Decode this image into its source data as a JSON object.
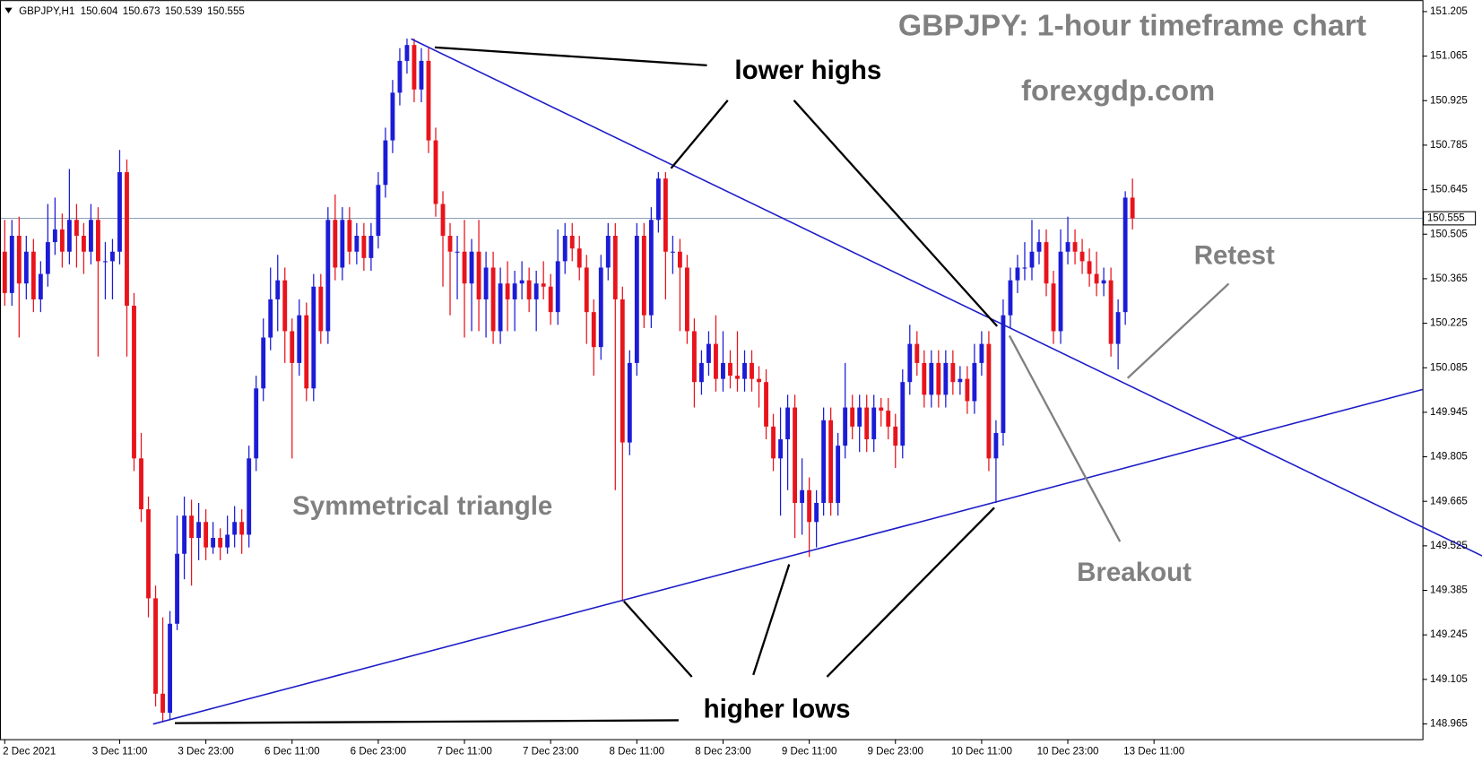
{
  "chart_data": {
    "type": "candlestick",
    "title": "GBPJPY: 1-hour timeframe chart",
    "subtitle": "forexgdp.com",
    "header": {
      "symbol": "GBPJPY,H1",
      "ohlc": [
        150.604,
        150.673,
        150.539,
        150.555
      ]
    },
    "annotations": [
      "lower highs",
      "higher lows",
      "Symmetrical triangle",
      "Breakout",
      "Retest"
    ],
    "up_color": "#1c1cd6",
    "down_color": "#e8141c",
    "bid_line": 150.555,
    "ylim": [
      148.917,
      151.241
    ],
    "yticks": [
      151.205,
      151.065,
      150.925,
      150.785,
      150.645,
      150.505,
      150.365,
      150.225,
      150.085,
      149.945,
      149.805,
      149.665,
      149.525,
      149.385,
      149.245,
      149.105,
      148.965
    ],
    "xlim": [
      -0.66,
      197.37
    ],
    "xticks": [
      {
        "value": 0,
        "label": "2 Dec 2021"
      },
      {
        "value": 16,
        "label": "3 Dec 11:00"
      },
      {
        "value": 28,
        "label": "3 Dec 23:00"
      },
      {
        "value": 40,
        "label": "6 Dec 11:00"
      },
      {
        "value": 52,
        "label": "6 Dec 23:00"
      },
      {
        "value": 64,
        "label": "7 Dec 11:00"
      },
      {
        "value": 76,
        "label": "7 Dec 23:00"
      },
      {
        "value": 88,
        "label": "8 Dec 11:00"
      },
      {
        "value": 100,
        "label": "8 Dec 23:00"
      },
      {
        "value": 112,
        "label": "9 Dec 11:00"
      },
      {
        "value": 124,
        "label": "9 Dec 23:00"
      },
      {
        "value": 136,
        "label": "10 Dec 11:00"
      },
      {
        "value": 148,
        "label": "10 Dec 23:00"
      },
      {
        "value": 160,
        "label": "13 Dec 11:00"
      }
    ],
    "open": [
      150.45,
      150.32,
      150.5,
      150.35,
      150.45,
      150.3,
      150.38,
      150.48,
      150.52,
      150.45,
      150.55,
      150.5,
      150.45,
      150.55,
      150.42,
      150.42,
      150.45,
      150.7,
      150.28,
      149.8,
      149.64,
      149.36,
      149.06,
      149.0,
      149.28,
      149.5,
      149.62,
      149.55,
      149.6,
      149.52,
      149.55,
      149.52,
      149.56,
      149.6,
      149.56,
      149.8,
      150.02,
      150.18,
      150.3,
      150.36,
      150.2,
      150.1,
      150.25,
      150.02,
      150.34,
      150.2,
      150.55,
      150.4,
      150.55,
      150.45,
      150.5,
      150.43,
      150.5,
      150.66,
      150.8,
      150.95,
      151.05,
      151.1,
      150.96,
      151.05,
      150.8,
      150.6,
      150.5,
      150.45,
      150.45,
      150.35,
      150.45,
      150.3,
      150.4,
      150.2,
      150.35,
      150.3,
      150.35,
      150.36,
      150.3,
      150.35,
      150.34,
      150.26,
      150.42,
      150.5,
      150.46,
      150.4,
      150.26,
      150.15,
      150.4,
      150.5,
      150.3,
      149.85,
      150.1,
      150.5,
      150.25,
      150.55,
      150.68,
      150.45,
      150.45,
      150.4,
      150.2,
      150.04,
      150.1,
      150.16,
      150.05,
      150.1,
      150.06,
      150.05,
      150.1,
      150.05,
      150.04,
      149.9,
      149.8,
      149.86,
      149.96,
      149.66,
      149.7,
      149.6,
      149.66,
      149.92,
      149.66,
      149.84,
      149.96,
      149.9,
      149.96,
      149.86,
      149.96,
      149.95,
      149.9,
      149.84,
      150.04,
      150.16,
      150.1,
      150.0,
      150.1,
      150.0,
      150.1,
      150.04,
      150.05,
      149.98,
      150.1,
      150.16,
      149.8,
      149.88,
      150.25,
      150.36,
      150.4,
      150.4,
      150.45,
      150.48,
      150.35,
      150.2,
      150.45,
      150.48,
      150.45,
      150.42,
      150.38,
      150.35,
      150.36,
      150.16,
      150.26,
      150.62
    ],
    "high": [
      150.55,
      150.55,
      150.56,
      150.5,
      150.49,
      150.42,
      150.6,
      150.62,
      150.57,
      150.71,
      150.6,
      150.54,
      150.6,
      150.59,
      150.48,
      150.49,
      150.77,
      150.74,
      150.32,
      149.88,
      149.68,
      149.4,
      149.3,
      149.32,
      149.62,
      149.68,
      149.67,
      149.66,
      149.64,
      149.6,
      149.58,
      149.62,
      149.65,
      149.64,
      149.84,
      150.06,
      150.24,
      150.4,
      150.44,
      150.4,
      150.24,
      150.3,
      150.29,
      150.38,
      150.38,
      150.59,
      150.63,
      150.59,
      150.59,
      150.54,
      150.54,
      150.54,
      150.7,
      150.84,
      150.99,
      151.09,
      151.12,
      151.12,
      151.09,
      151.09,
      150.84,
      150.64,
      150.54,
      150.5,
      150.55,
      150.49,
      150.55,
      150.45,
      150.45,
      150.4,
      150.42,
      150.39,
      150.42,
      150.4,
      150.39,
      150.42,
      150.38,
      150.52,
      150.54,
      150.54,
      150.5,
      150.44,
      150.3,
      150.44,
      150.54,
      150.54,
      150.34,
      150.14,
      150.54,
      150.54,
      150.59,
      150.7,
      150.7,
      150.5,
      150.49,
      150.44,
      150.24,
      150.14,
      150.2,
      150.25,
      150.2,
      150.14,
      150.2,
      150.14,
      150.14,
      150.09,
      150.08,
      149.94,
      149.96,
      150.0,
      150.0,
      149.8,
      149.74,
      149.7,
      149.96,
      149.96,
      149.88,
      150.1,
      150.0,
      150.0,
      150.0,
      150.0,
      149.99,
      149.99,
      149.94,
      150.08,
      150.22,
      150.2,
      150.14,
      150.14,
      150.14,
      150.14,
      150.14,
      150.09,
      150.09,
      150.16,
      150.2,
      150.2,
      149.92,
      150.3,
      150.4,
      150.44,
      150.48,
      150.55,
      150.52,
      150.52,
      150.39,
      150.52,
      150.56,
      150.52,
      150.49,
      150.46,
      150.45,
      150.4,
      150.4,
      150.3,
      150.64,
      150.68
    ],
    "low": [
      150.28,
      150.28,
      150.18,
      150.3,
      150.26,
      150.26,
      150.34,
      150.44,
      150.4,
      150.41,
      150.4,
      150.38,
      150.41,
      150.12,
      150.3,
      150.3,
      150.41,
      150.12,
      149.76,
      149.6,
      149.3,
      149.02,
      148.97,
      148.98,
      149.26,
      149.42,
      149.4,
      149.48,
      149.48,
      149.5,
      149.48,
      149.5,
      149.52,
      149.5,
      149.52,
      149.76,
      149.98,
      150.14,
      150.2,
      150.1,
      149.8,
      150.06,
      149.98,
      149.98,
      150.16,
      150.16,
      150.36,
      150.36,
      150.41,
      150.41,
      150.39,
      150.39,
      150.46,
      150.62,
      150.76,
      150.91,
      151.01,
      150.92,
      150.92,
      150.76,
      150.56,
      150.34,
      150.25,
      150.3,
      150.18,
      150.2,
      150.2,
      150.18,
      150.16,
      150.16,
      150.2,
      150.2,
      150.3,
      150.26,
      150.2,
      150.3,
      150.22,
      150.22,
      150.38,
      150.42,
      150.36,
      150.16,
      150.06,
      150.11,
      150.36,
      149.7,
      149.35,
      149.81,
      150.06,
      150.21,
      150.21,
      150.51,
      150.3,
      150.38,
      150.2,
      150.16,
      149.96,
      150.0,
      150.06,
      150.01,
      150.01,
      150.02,
      150.01,
      150.01,
      150.01,
      149.96,
      149.86,
      149.76,
      149.62,
      149.7,
      149.55,
      149.56,
      149.49,
      149.52,
      149.62,
      149.62,
      149.62,
      149.8,
      149.86,
      149.82,
      149.82,
      149.82,
      149.9,
      149.86,
      149.77,
      149.8,
      150.0,
      150.06,
      149.96,
      149.96,
      149.96,
      149.96,
      150.0,
      150.0,
      149.94,
      149.94,
      150.06,
      149.76,
      149.66,
      149.84,
      150.21,
      150.32,
      150.36,
      150.36,
      150.41,
      150.31,
      150.16,
      150.16,
      150.41,
      150.41,
      150.38,
      150.34,
      150.31,
      150.31,
      150.12,
      150.08,
      150.22,
      150.52
    ],
    "close": [
      150.32,
      150.5,
      150.35,
      150.45,
      150.3,
      150.38,
      150.48,
      150.52,
      150.45,
      150.55,
      150.5,
      150.45,
      150.55,
      150.42,
      150.42,
      150.45,
      150.7,
      150.28,
      149.8,
      149.64,
      149.36,
      149.06,
      149.0,
      149.28,
      149.5,
      149.62,
      149.55,
      149.6,
      149.52,
      149.55,
      149.52,
      149.56,
      149.6,
      149.56,
      149.8,
      150.02,
      150.18,
      150.3,
      150.36,
      150.2,
      150.1,
      150.25,
      150.02,
      150.34,
      150.2,
      150.55,
      150.4,
      150.55,
      150.45,
      150.5,
      150.43,
      150.5,
      150.66,
      150.8,
      150.95,
      151.05,
      151.1,
      150.96,
      151.05,
      150.8,
      150.6,
      150.5,
      150.45,
      150.45,
      150.35,
      150.45,
      150.3,
      150.4,
      150.2,
      150.35,
      150.3,
      150.35,
      150.36,
      150.3,
      150.35,
      150.34,
      150.26,
      150.42,
      150.5,
      150.46,
      150.4,
      150.26,
      150.15,
      150.4,
      150.5,
      150.3,
      149.85,
      150.1,
      150.5,
      150.25,
      150.55,
      150.68,
      150.45,
      150.45,
      150.4,
      150.2,
      150.04,
      150.1,
      150.16,
      150.05,
      150.1,
      150.06,
      150.05,
      150.1,
      150.05,
      150.04,
      149.9,
      149.8,
      149.86,
      149.96,
      149.66,
      149.7,
      149.6,
      149.66,
      149.92,
      149.66,
      149.84,
      149.96,
      149.9,
      149.96,
      149.86,
      149.96,
      149.95,
      149.9,
      149.84,
      150.04,
      150.16,
      150.1,
      150.0,
      150.1,
      150.0,
      150.1,
      150.04,
      150.05,
      149.98,
      150.1,
      150.16,
      149.8,
      149.88,
      150.25,
      150.36,
      150.4,
      150.4,
      150.45,
      150.48,
      150.35,
      150.2,
      150.45,
      150.48,
      150.45,
      150.42,
      150.38,
      150.35,
      150.36,
      150.16,
      150.26,
      150.62,
      150.555
    ]
  }
}
